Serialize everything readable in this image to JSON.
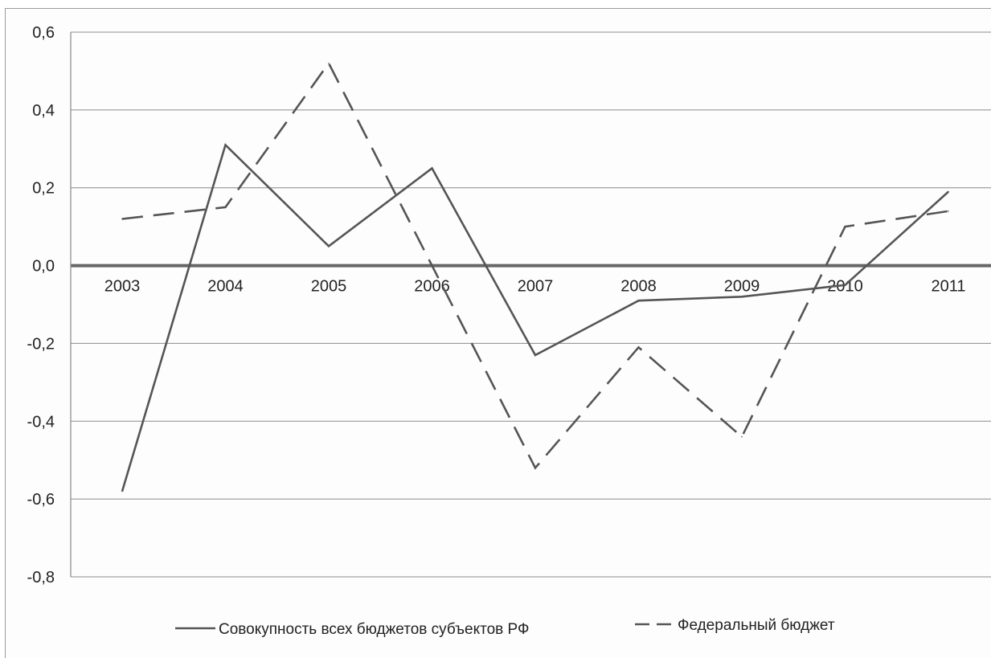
{
  "chart_data": {
    "type": "line",
    "categories": [
      "2003",
      "2004",
      "2005",
      "2006",
      "2007",
      "2008",
      "2009",
      "2010",
      "2011"
    ],
    "series": [
      {
        "name": "Совокупность всех бюджетов субъектов РФ",
        "values": [
          -0.58,
          0.31,
          0.05,
          0.25,
          -0.23,
          -0.09,
          -0.08,
          -0.05,
          0.19
        ],
        "color": "#555555",
        "dash": "solid"
      },
      {
        "name": "Федеральный бюджет",
        "values": [
          0.12,
          0.15,
          0.52,
          0.0,
          -0.52,
          -0.21,
          -0.44,
          0.1,
          0.14
        ],
        "color": "#555555",
        "dash": "dashed"
      }
    ],
    "ylim": [
      -0.8,
      0.6
    ],
    "yticks": [
      "0,6",
      "0,4",
      "0,2",
      "0,0",
      "-0,2",
      "-0,4",
      "-0,6",
      "-0,8"
    ],
    "grid": true,
    "legend": "bottom"
  }
}
